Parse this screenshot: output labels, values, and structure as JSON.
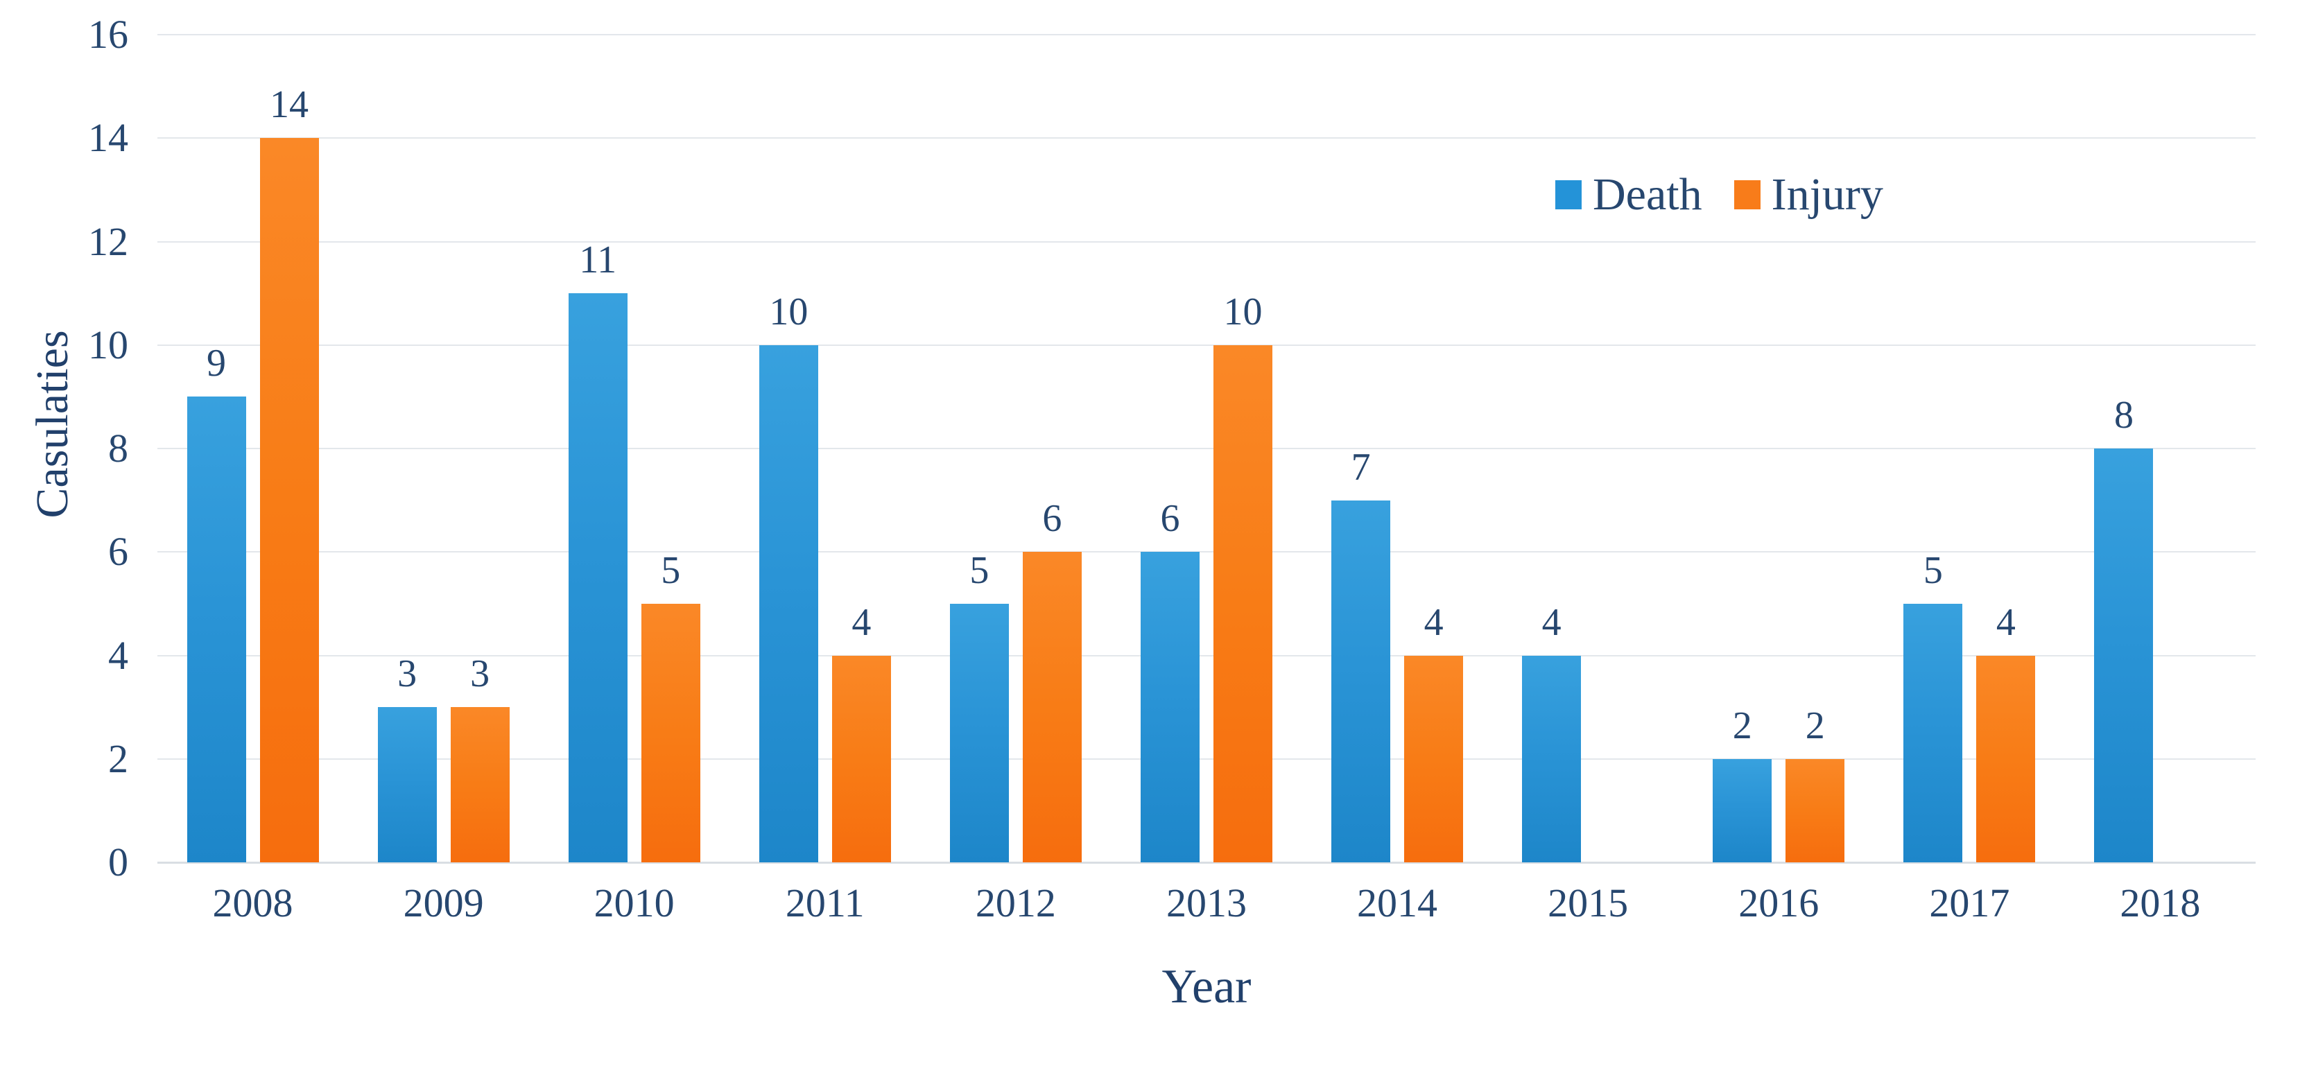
{
  "chart_data": {
    "type": "bar",
    "title": "",
    "xlabel": "Year",
    "ylabel": "Casulaties",
    "ylim": [
      0,
      16
    ],
    "yticks": [
      0,
      2,
      4,
      6,
      8,
      10,
      12,
      14,
      16
    ],
    "grid": true,
    "legend_position": "top-right",
    "categories": [
      "2008",
      "2009",
      "2010",
      "2011",
      "2012",
      "2013",
      "2014",
      "2015",
      "2016",
      "2017",
      "2018"
    ],
    "series": [
      {
        "name": "Death",
        "values": [
          9,
          3,
          11,
          10,
          5,
          6,
          7,
          4,
          2,
          5,
          8
        ]
      },
      {
        "name": "Injury",
        "values": [
          14,
          3,
          5,
          4,
          6,
          10,
          4,
          null,
          2,
          4,
          null
        ]
      }
    ]
  },
  "colors": {
    "death": "#2493d8",
    "injury": "#f87c1a",
    "text": "#27476f",
    "gridline": "#e3e7eb"
  }
}
